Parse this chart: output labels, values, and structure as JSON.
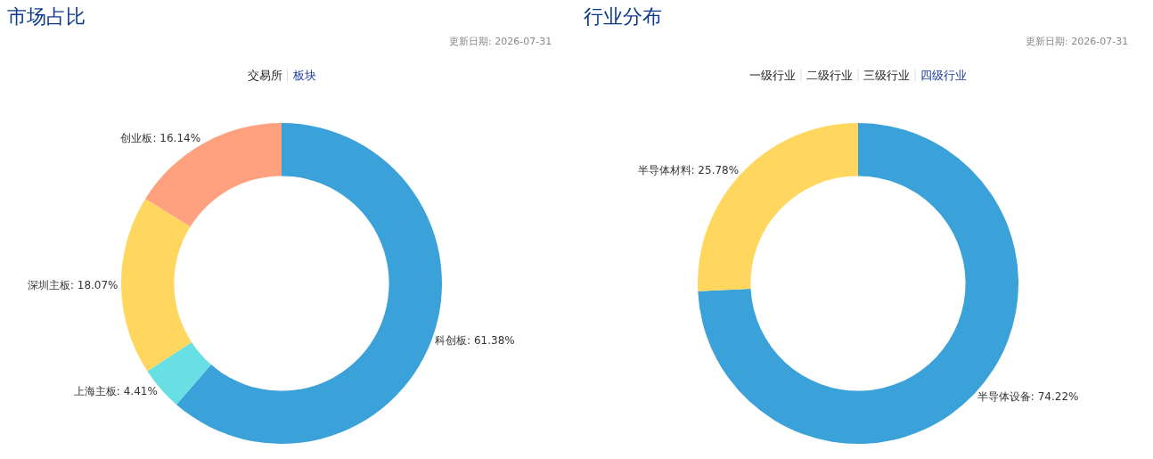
{
  "chart_data": [
    {
      "type": "donut",
      "title": "市场占比",
      "subtitle": "更新日期: 2026-07-31",
      "annotations": [
        "交易所",
        "板块"
      ],
      "categories": [
        "科创板",
        "上海主板",
        "深圳主板",
        "创业板"
      ],
      "values": [
        61.38,
        4.41,
        18.07,
        16.14
      ],
      "colors": [
        "#3aa1d9",
        "#67dfe3",
        "#ffd75f",
        "#ffa07f"
      ],
      "value_labels": [
        "61.38%",
        "4.41%",
        "18.07%",
        "16.14%"
      ]
    },
    {
      "type": "donut",
      "title": "行业分布",
      "subtitle": "更新日期: 2026-07-31",
      "annotations": [
        "一级行业",
        "二级行业",
        "三级行业",
        "四级行业"
      ],
      "categories": [
        "半导体设备",
        "半导体材料"
      ],
      "values": [
        74.22,
        25.78
      ],
      "colors": [
        "#3aa1d9",
        "#ffd75f"
      ],
      "value_labels": [
        "74.22%",
        "25.78%"
      ]
    }
  ]
}
